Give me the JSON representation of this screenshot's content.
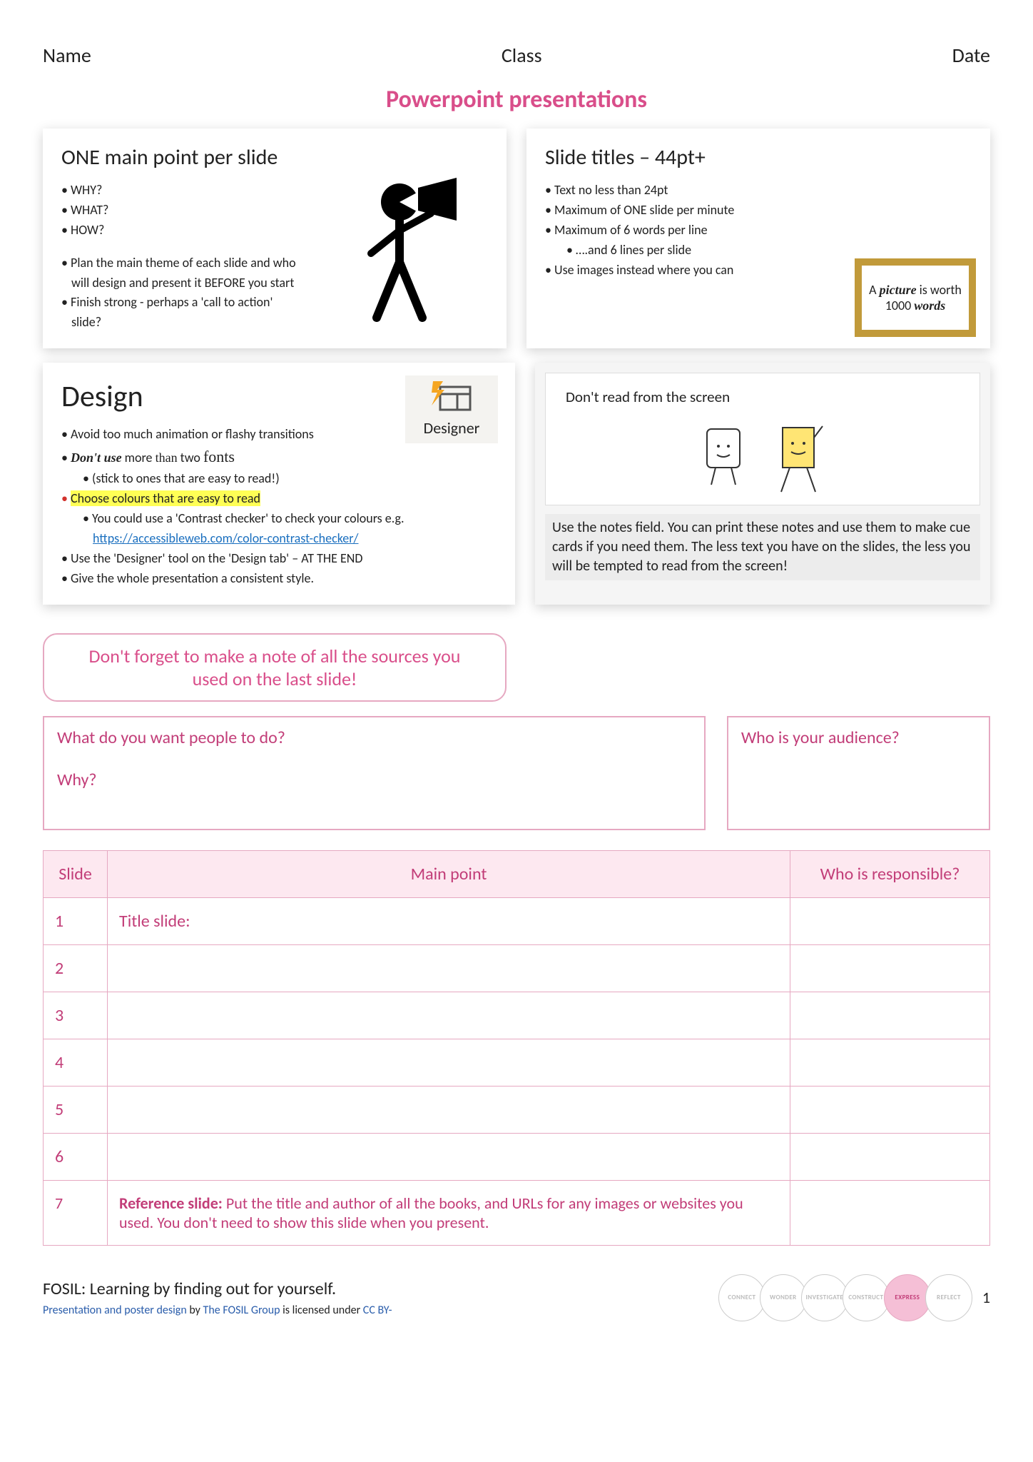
{
  "header": {
    "name": "Name",
    "class": "Class",
    "date": "Date"
  },
  "title": "Powerpoint presentations",
  "panel1": {
    "heading": "ONE main point per slide",
    "bullets": [
      "WHY?",
      "WHAT?",
      "HOW?"
    ],
    "bullets2": [
      "Plan the main theme of each slide and who will design and present it BEFORE you start",
      "Finish strong - perhaps a 'call to action' slide?"
    ]
  },
  "panel2": {
    "heading": "Slide titles – 44pt+",
    "bullets": [
      "Text no less than 24pt",
      "Maximum of ONE slide per minute",
      "Maximum of 6 words per line",
      "….and 6 lines per slide",
      "Use images instead where you can"
    ],
    "frame_line1": "A ",
    "frame_b": "picture",
    "frame_line2": " is worth 1000 ",
    "frame_b2": "words"
  },
  "panel3": {
    "heading": "Design",
    "designer_label": "Designer",
    "b1": "Avoid too much animation or flashy transitions",
    "b2a": "Don't ",
    "b2b": "use",
    "b2c": " more ",
    "b2d": "than",
    "b2e": " two ",
    "b2f": "fonts",
    "b2sub": "(stick to ones that are easy to read!)",
    "b3": "Choose colours that are easy to read",
    "b3sub_pre": "You could use a 'Contrast checker' to check your colours e.g. ",
    "b3link": "https://accessibleweb.com/color-contrast-checker/",
    "b4": "Use the 'Designer' tool on the 'Design tab' – AT THE END",
    "b5": "Give the whole presentation a consistent style."
  },
  "panel4": {
    "slide_text": "Don't read from the screen",
    "notes": "Use the notes field. You can print these notes and use them to make cue cards if you need them. The less text you have on the slides, the less you will be tempted to read from the screen!"
  },
  "callout": "Don't forget to make a note of all the sources you used on the last slide!",
  "qbox_left_q1": "What do you want people to do?",
  "qbox_left_q2": "Why?",
  "qbox_right": "Who is your audience?",
  "table": {
    "h1": "Slide",
    "h2": "Main point",
    "h3": "Who is responsible?",
    "rows": [
      {
        "n": "1",
        "main": "Title slide:"
      },
      {
        "n": "2",
        "main": ""
      },
      {
        "n": "3",
        "main": ""
      },
      {
        "n": "4",
        "main": ""
      },
      {
        "n": "5",
        "main": ""
      },
      {
        "n": "6",
        "main": ""
      }
    ],
    "ref_n": "7",
    "ref_label": "Reference slide: ",
    "ref_text": "Put the title and author of all the books, and URLs for any images or websites you used. You don't need to show this slide when you present."
  },
  "footer": {
    "line": "FOSIL: Learning by finding out for yourself.",
    "sub_a": "Presentation and poster design",
    "sub_b": " by ",
    "sub_c": "The FOSIL Group",
    "sub_d": " is licensed under ",
    "sub_e": "CC BY-",
    "circles": [
      "CONNECT",
      "WONDER",
      "INVESTIGATE",
      "CONSTRUCT",
      "EXPRESS",
      "REFLECT"
    ],
    "active_index": 4,
    "page": "1"
  },
  "colors": {
    "pink": "#d94e8a",
    "pink_border": "#e6a8c1",
    "pink_text": "#c23d78",
    "pink_fill": "#fde8f0",
    "highlight": "#ffff55",
    "link": "#1a6fbf",
    "frame_gold": "#c19a3a"
  }
}
